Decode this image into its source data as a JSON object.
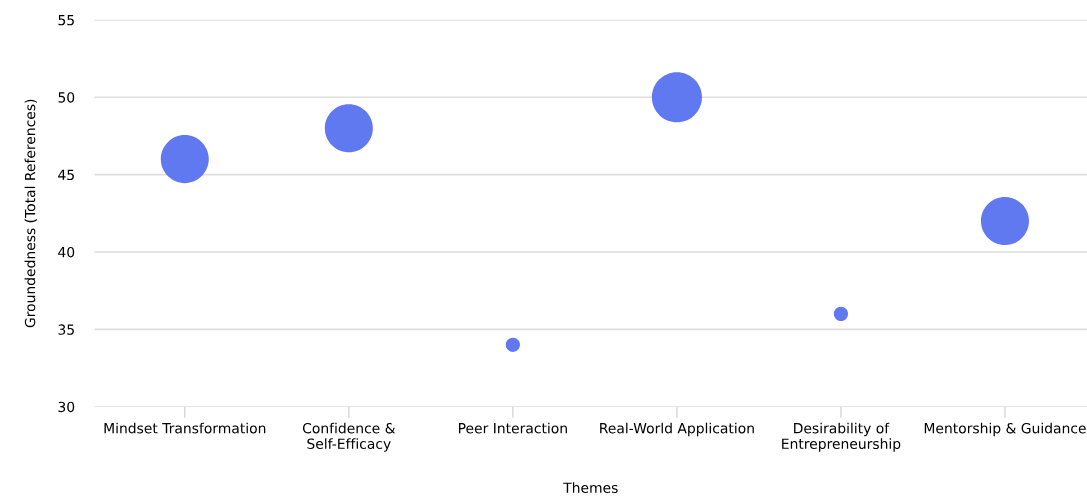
{
  "chart_data": {
    "type": "bubble",
    "xlabel": "Themes",
    "ylabel": "Groundedness (Total References)",
    "categories": [
      "Mindset Transformation",
      "Confidence &\nSelf-Efficacy",
      "Peer Interaction",
      "Real-World Application",
      "Desirability of\nEntrepreneurship",
      "Mentorship & Guidance"
    ],
    "values": [
      46,
      48,
      34,
      50,
      36,
      42
    ],
    "sizes": [
      0.92,
      0.92,
      0.08,
      1,
      0.08,
      0.92
    ],
    "color": "#6078f0",
    "ylim": [
      30,
      55
    ],
    "yticks": [
      30,
      35,
      40,
      45,
      50,
      55
    ],
    "grid": "y",
    "legend": false
  }
}
